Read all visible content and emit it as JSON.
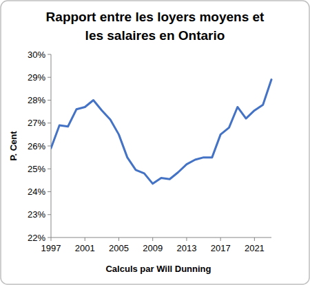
{
  "chart_data": {
    "type": "line",
    "title": "Rapport entre les loyers moyens et les salaires en Ontario",
    "y_label": "P. Cent",
    "x_label": "Calculs par Will Dunning",
    "x": [
      1997,
      1998,
      1999,
      2000,
      2001,
      2002,
      2003,
      2004,
      2005,
      2006,
      2007,
      2008,
      2009,
      2010,
      2011,
      2012,
      2013,
      2014,
      2015,
      2016,
      2017,
      2018,
      2019,
      2020,
      2021,
      2022,
      2023
    ],
    "values": [
      25.9,
      26.9,
      26.85,
      27.6,
      27.7,
      28.0,
      27.55,
      27.15,
      26.5,
      25.5,
      24.95,
      24.8,
      24.35,
      24.6,
      24.55,
      24.85,
      25.2,
      25.4,
      25.5,
      25.5,
      26.5,
      26.8,
      27.7,
      27.2,
      27.55,
      27.8,
      28.9
    ],
    "color": "#4472c4",
    "xlim": [
      1997,
      2023
    ],
    "xticks": [
      1997,
      2001,
      2005,
      2009,
      2013,
      2017,
      2021
    ],
    "ylim": [
      22,
      30
    ],
    "yticks": [
      {
        "value": 22,
        "label": "22%"
      },
      {
        "value": 23,
        "label": "23%"
      },
      {
        "value": 24,
        "label": "24%"
      },
      {
        "value": 25,
        "label": "25%"
      },
      {
        "value": 26,
        "label": "26%"
      },
      {
        "value": 27,
        "label": "27%"
      },
      {
        "value": 28,
        "label": "28%"
      },
      {
        "value": 29,
        "label": "29%"
      },
      {
        "value": 30,
        "label": "30%"
      }
    ],
    "grid": false
  }
}
